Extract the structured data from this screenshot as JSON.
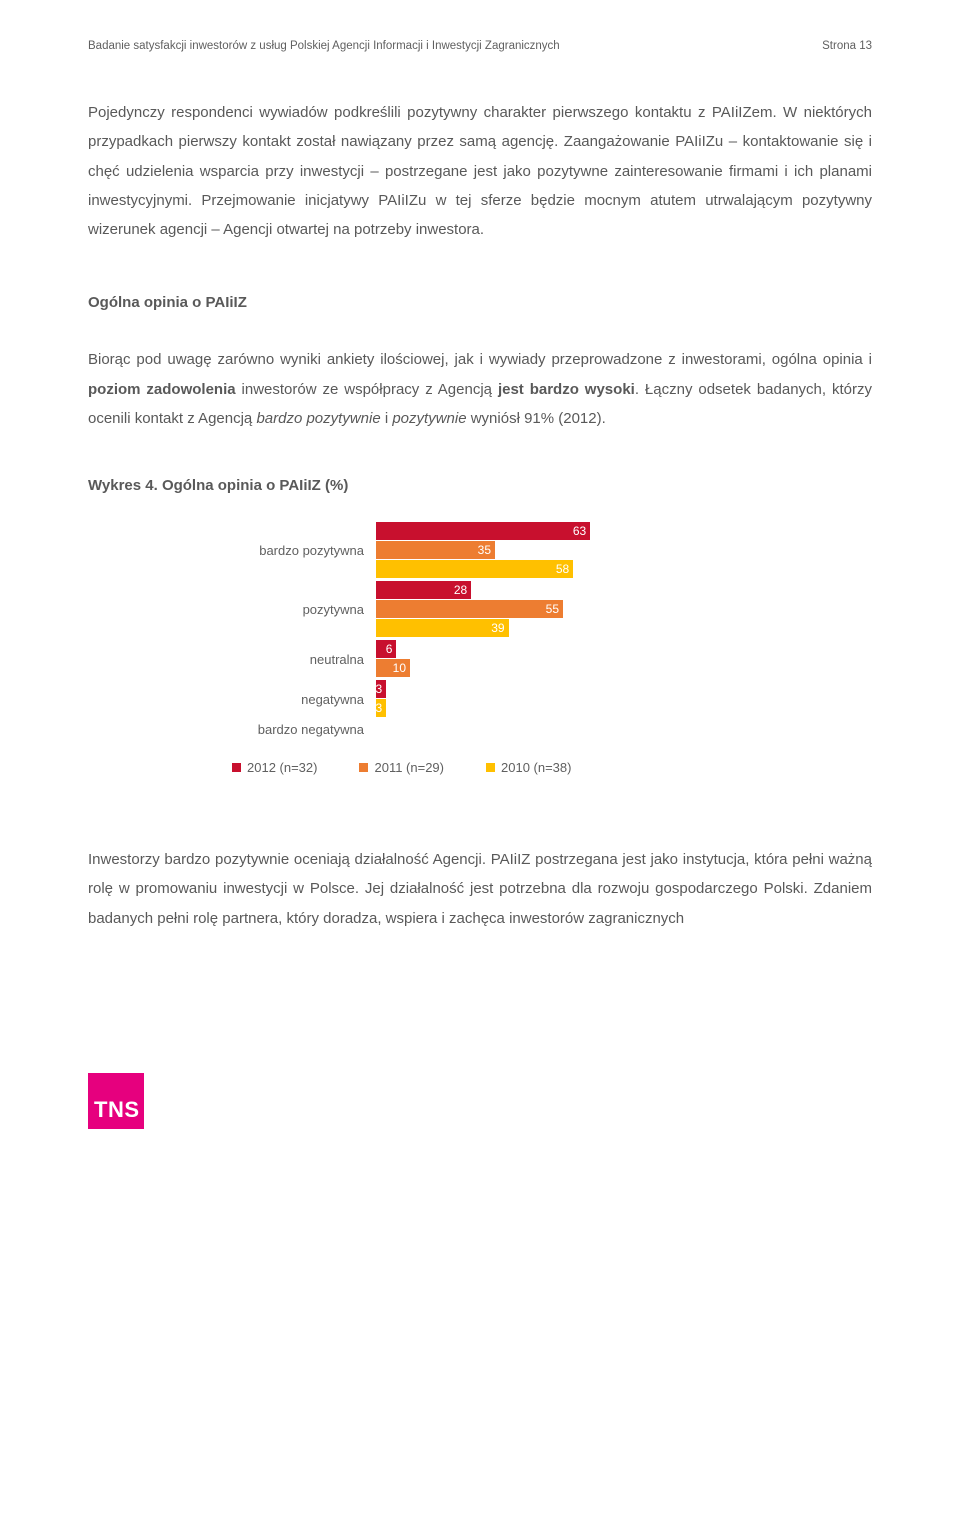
{
  "header": {
    "left": "Badanie satysfakcji inwestorów z usług Polskiej Agencji Informacji i Inwestycji Zagranicznych",
    "right": "Strona 13"
  },
  "para1_pre": "Pojedynczy respondenci wywiadów podkreślili pozytywny charakter pierwszego kontaktu z PAIiIZem. W niektórych przypadkach pierwszy kontakt został nawiązany przez samą agencję. Zaangażowanie PAIiIZu ",
  "para1_dash1": "kontaktowanie się i chęć udzielenia wsparcia przy inwestycji ",
  "para1_post": "postrzegane jest jako pozytywne zainteresowanie firmami i ich planami inwestycyjnymi. Przejmowanie inicjatywy PAIiIZu w tej sferze będzie mocnym atutem utrwalającym pozytywny wizerunek agencji ",
  "para1_end": "Agencji otwartej na potrzeby inwestora.",
  "section_title": "Ogólna opinia o PAIiIZ",
  "para2_a": "Biorąc pod uwagę zarówno wyniki ankiety ilościowej, jak i wywiady przeprowadzone z inwestorami, ogólna opinia i ",
  "para2_b": "poziom zadowolenia",
  "para2_c": " inwestorów ze współpracy z Agencją ",
  "para2_d": "jest bardzo wysoki",
  "para2_e": ". Łączny odsetek badanych, którzy ocenili kontakt z Agencją ",
  "para2_f": "bardzo pozytywnie",
  "para2_g": " i ",
  "para2_h": "pozytywnie",
  "para2_i": " wyniósł 91% (2012).",
  "chart_title": "Wykres 4. Ogólna opinia o PAIiIZ (%)",
  "chart": {
    "type": "bar",
    "max": 100,
    "colors": {
      "s2012": "#c8102e",
      "s2011": "#ed7d31",
      "s2010": "#ffc000"
    },
    "categories": [
      {
        "label": "bardzo pozytywna",
        "v": [
          63,
          35,
          58
        ]
      },
      {
        "label": "pozytywna",
        "v": [
          28,
          55,
          39
        ]
      },
      {
        "label": "neutralna",
        "v": [
          6,
          10,
          null
        ]
      },
      {
        "label": "negatywna",
        "v": [
          3,
          null,
          3
        ]
      },
      {
        "label": "bardzo negatywna",
        "v": [
          null,
          null,
          null
        ]
      }
    ],
    "legend": [
      {
        "label": "2012 (n=32)",
        "color": "#c8102e"
      },
      {
        "label": "2011 (n=29)",
        "color": "#ed7d31"
      },
      {
        "label": "2010 (n=38)",
        "color": "#ffc000"
      }
    ]
  },
  "para3": "Inwestorzy bardzo pozytywnie oceniają działalność Agencji. PAIiIZ postrzegana jest jako instytucja, która pełni ważną rolę w promowaniu inwestycji w Polsce. Jej działalność jest potrzebna dla rozwoju gospodarczego Polski. Zdaniem badanych pełni rolę partnera, który doradza, wspiera i zachęca inwestorów zagranicznych",
  "logo": "TNS"
}
